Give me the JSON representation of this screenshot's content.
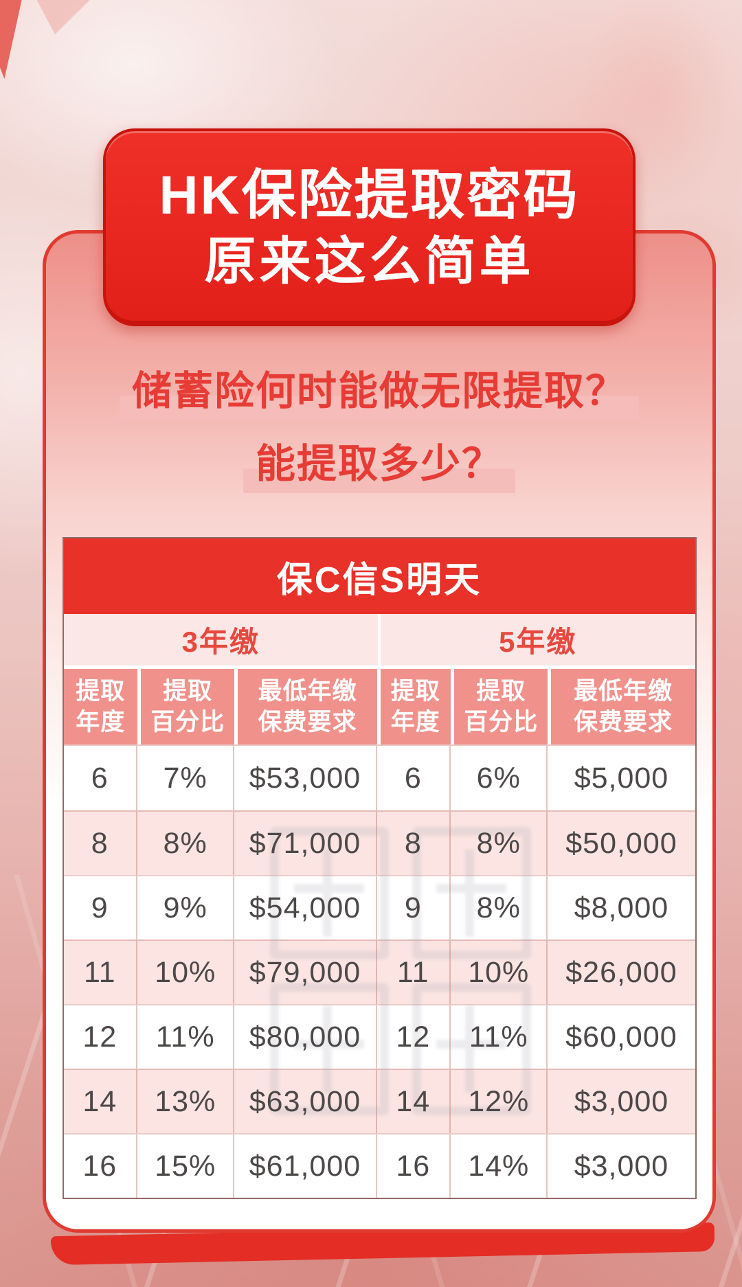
{
  "poster": {
    "banner": {
      "line1": "HK保险提取密码",
      "line2": "原来这么简单"
    },
    "question": {
      "line1": "储蓄险何时能做无限提取？",
      "line2": "能提取多少？"
    },
    "table": {
      "title": "保C信S明天",
      "group_headers": [
        "3年缴",
        "5年缴"
      ],
      "column_headers": [
        [
          "提取",
          "年度"
        ],
        [
          "提取",
          "百分比"
        ],
        [
          "最低年缴",
          "保费要求"
        ]
      ],
      "rows": [
        [
          "6",
          "7%",
          "$53,000",
          "6",
          "6%",
          "$5,000"
        ],
        [
          "8",
          "8%",
          "$71,000",
          "8",
          "8%",
          "$50,000"
        ],
        [
          "9",
          "9%",
          "$54,000",
          "9",
          "8%",
          "$8,000"
        ],
        [
          "11",
          "10%",
          "$79,000",
          "11",
          "10%",
          "$26,000"
        ],
        [
          "12",
          "11%",
          "$80,000",
          "12",
          "11%",
          "$60,000"
        ],
        [
          "14",
          "13%",
          "$63,000",
          "14",
          "12%",
          "$3,000"
        ],
        [
          "16",
          "15%",
          "$61,000",
          "16",
          "14%",
          "$3,000"
        ]
      ]
    },
    "colors": {
      "banner_red": "#e7241e",
      "table_title_red": "#e73129",
      "question_red": "#e63c35",
      "header_salmon": "#f0918b",
      "subheader_pink": "#fbe7e6",
      "row_alt_pink": "#fbe4e2",
      "highlight_pink": "#f5bcb9",
      "data_text": "#4c4848"
    }
  }
}
